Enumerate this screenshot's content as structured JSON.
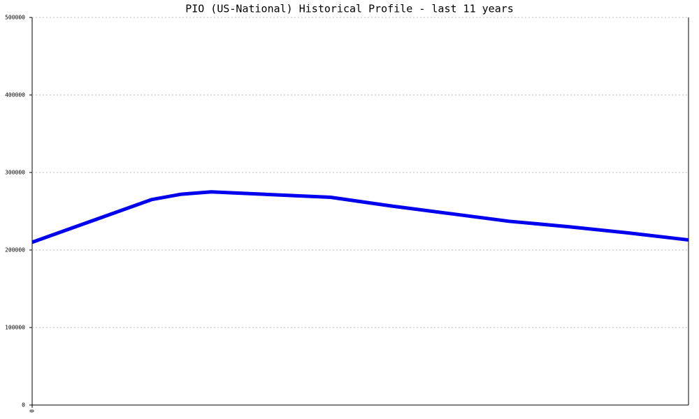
{
  "chart_data": {
    "type": "line",
    "title": "PIO (US-National) Historical Profile - last 11 years",
    "x": [
      0,
      2,
      2.5,
      3,
      5,
      6,
      7,
      8,
      9,
      10,
      11
    ],
    "series": [
      {
        "color": "#0000ee",
        "values": [
          210000,
          265000,
          272000,
          275000,
          268000,
          257000,
          247000,
          237000,
          230000,
          222000,
          213000
        ]
      }
    ],
    "xlim": [
      0,
      11
    ],
    "xticks": [
      0
    ],
    "ylim": [
      0,
      500000
    ],
    "yticks": [
      0,
      100000,
      200000,
      300000,
      400000,
      500000
    ],
    "grid": true
  }
}
